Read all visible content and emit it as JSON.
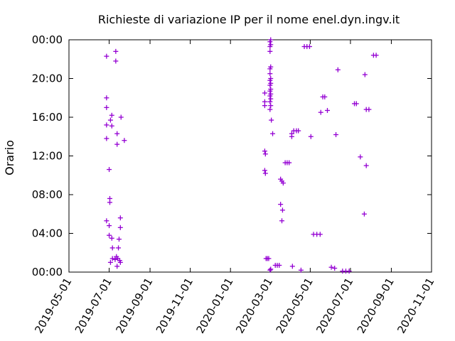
{
  "chart_data": {
    "type": "scatter",
    "title": "Richieste di variazione IP per il nome enel.dyn.ingv.it",
    "xlabel": "",
    "ylabel": "Orario",
    "x_ticks": [
      "2019-05-01",
      "2019-07-01",
      "2019-09-01",
      "2019-11-01",
      "2020-01-01",
      "2020-03-01",
      "2020-05-01",
      "2020-07-01",
      "2020-09-01",
      "2020-11-01"
    ],
    "y_ticks": [
      "00:00",
      "04:00",
      "08:00",
      "12:00",
      "16:00",
      "20:00",
      "00:00"
    ],
    "xlim": [
      "2019-05-01",
      "2020-11-01"
    ],
    "ylim_hours": [
      0,
      24
    ],
    "marker": "+",
    "color": "#9400d3",
    "grid": false,
    "legend": "none",
    "points": [
      [
        "2019-06-27",
        22.3
      ],
      [
        "2019-06-27",
        18.0
      ],
      [
        "2019-06-27",
        17.0
      ],
      [
        "2019-06-27",
        15.2
      ],
      [
        "2019-06-27",
        13.8
      ],
      [
        "2019-06-27",
        5.3
      ],
      [
        "2019-07-01",
        10.6
      ],
      [
        "2019-07-01",
        4.8
      ],
      [
        "2019-07-01",
        3.8
      ],
      [
        "2019-07-02",
        7.6
      ],
      [
        "2019-07-02",
        7.2
      ],
      [
        "2019-07-03",
        15.7
      ],
      [
        "2019-07-03",
        1.0
      ],
      [
        "2019-07-05",
        16.2
      ],
      [
        "2019-07-05",
        15.1
      ],
      [
        "2019-07-05",
        3.5
      ],
      [
        "2019-07-06",
        2.5
      ],
      [
        "2019-07-06",
        1.4
      ],
      [
        "2019-07-10",
        1.3
      ],
      [
        "2019-07-11",
        22.8
      ],
      [
        "2019-07-11",
        21.8
      ],
      [
        "2019-07-12",
        1.6
      ],
      [
        "2019-07-13",
        14.3
      ],
      [
        "2019-07-13",
        13.2
      ],
      [
        "2019-07-13",
        0.6
      ],
      [
        "2019-07-14",
        1.4
      ],
      [
        "2019-07-15",
        2.5
      ],
      [
        "2019-07-16",
        3.4
      ],
      [
        "2019-07-17",
        1.2
      ],
      [
        "2019-07-18",
        5.6
      ],
      [
        "2019-07-18",
        4.6
      ],
      [
        "2019-07-18",
        1.0
      ],
      [
        "2019-07-19",
        16.0
      ],
      [
        "2019-07-24",
        13.6
      ],
      [
        "2020-02-22",
        18.5
      ],
      [
        "2020-02-22",
        17.6
      ],
      [
        "2020-02-22",
        17.2
      ],
      [
        "2020-02-22",
        10.5
      ],
      [
        "2020-02-22",
        12.5
      ],
      [
        "2020-02-23",
        12.2
      ],
      [
        "2020-02-23",
        10.2
      ],
      [
        "2020-02-24",
        1.4
      ],
      [
        "2020-02-26",
        1.4
      ],
      [
        "2020-02-28",
        1.4
      ],
      [
        "2020-03-01",
        23.8
      ],
      [
        "2020-03-01",
        23.3
      ],
      [
        "2020-03-01",
        22.8
      ],
      [
        "2020-03-01",
        21.0
      ],
      [
        "2020-03-01",
        20.5
      ],
      [
        "2020-03-01",
        19.8
      ],
      [
        "2020-03-01",
        19.3
      ],
      [
        "2020-03-01",
        18.7
      ],
      [
        "2020-03-01",
        18.2
      ],
      [
        "2020-03-01",
        17.6
      ],
      [
        "2020-03-01",
        16.8
      ],
      [
        "2020-03-01",
        0.2
      ],
      [
        "2020-03-02",
        24.0
      ],
      [
        "2020-03-02",
        23.5
      ],
      [
        "2020-03-02",
        21.2
      ],
      [
        "2020-03-02",
        20.0
      ],
      [
        "2020-03-02",
        19.5
      ],
      [
        "2020-03-02",
        18.9
      ],
      [
        "2020-03-02",
        18.4
      ],
      [
        "2020-03-02",
        17.9
      ],
      [
        "2020-03-02",
        17.2
      ],
      [
        "2020-03-02",
        0.3
      ],
      [
        "2020-03-03",
        15.7
      ],
      [
        "2020-03-05",
        14.3
      ],
      [
        "2020-03-09",
        0.7
      ],
      [
        "2020-03-12",
        0.7
      ],
      [
        "2020-03-15",
        0.7
      ],
      [
        "2020-03-17",
        9.6
      ],
      [
        "2020-03-17",
        7.0
      ],
      [
        "2020-03-19",
        9.4
      ],
      [
        "2020-03-19",
        5.3
      ],
      [
        "2020-03-20",
        6.4
      ],
      [
        "2020-03-21",
        9.2
      ],
      [
        "2020-03-24",
        11.3
      ],
      [
        "2020-03-27",
        11.3
      ],
      [
        "2020-03-30",
        11.3
      ],
      [
        "2020-04-03",
        14.3
      ],
      [
        "2020-04-03",
        14.0
      ],
      [
        "2020-04-04",
        0.6
      ],
      [
        "2020-04-06",
        14.6
      ],
      [
        "2020-04-10",
        14.6
      ],
      [
        "2020-04-13",
        14.6
      ],
      [
        "2020-04-17",
        0.2
      ],
      [
        "2020-04-22",
        23.3
      ],
      [
        "2020-04-26",
        23.3
      ],
      [
        "2020-04-30",
        23.3
      ],
      [
        "2020-05-02",
        14.0
      ],
      [
        "2020-05-06",
        3.9
      ],
      [
        "2020-05-11",
        3.9
      ],
      [
        "2020-05-16",
        3.9
      ],
      [
        "2020-05-17",
        16.5
      ],
      [
        "2020-05-20",
        18.1
      ],
      [
        "2020-05-23",
        18.1
      ],
      [
        "2020-05-27",
        16.7
      ],
      [
        "2020-06-02",
        0.5
      ],
      [
        "2020-06-07",
        0.4
      ],
      [
        "2020-06-09",
        14.2
      ],
      [
        "2020-06-12",
        20.9
      ],
      [
        "2020-06-19",
        0.1
      ],
      [
        "2020-06-24",
        0.1
      ],
      [
        "2020-06-29",
        0.1
      ],
      [
        "2020-07-07",
        17.4
      ],
      [
        "2020-07-10",
        17.4
      ],
      [
        "2020-07-16",
        11.9
      ],
      [
        "2020-07-22",
        6.0
      ],
      [
        "2020-07-23",
        20.4
      ],
      [
        "2020-07-25",
        11.0
      ],
      [
        "2020-07-25",
        16.8
      ],
      [
        "2020-07-29",
        16.8
      ],
      [
        "2020-08-05",
        22.4
      ],
      [
        "2020-08-09",
        22.4
      ]
    ]
  }
}
